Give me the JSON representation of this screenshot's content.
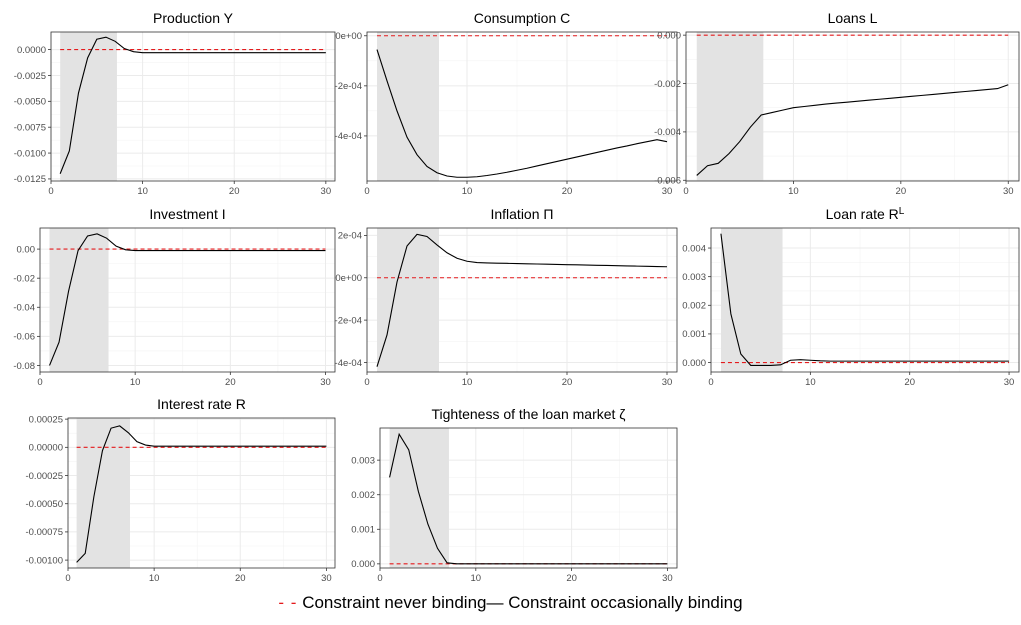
{
  "chart_data": [
    {
      "type": "line",
      "title": "Production Y",
      "x": [
        1,
        2,
        3,
        4,
        5,
        6,
        7,
        8,
        9,
        10,
        11,
        12,
        13,
        14,
        15,
        16,
        17,
        18,
        19,
        20,
        21,
        22,
        23,
        24,
        25,
        26,
        27,
        28,
        29,
        30
      ],
      "series": [
        {
          "name": "Constraint never binding",
          "values": [
            0,
            0,
            0,
            0,
            0,
            0,
            0,
            0,
            0,
            0,
            0,
            0,
            0,
            0,
            0,
            0,
            0,
            0,
            0,
            0,
            0,
            0,
            0,
            0,
            0,
            0,
            0,
            0,
            0,
            0
          ]
        },
        {
          "name": "Constraint occasionally binding",
          "values": [
            -0.012,
            -0.0098,
            -0.0042,
            -0.0008,
            0.001,
            0.0012,
            0.0008,
            0.0001,
            -0.0002,
            -0.0003,
            -0.0003,
            -0.0003,
            -0.0003,
            -0.0003,
            -0.0003,
            -0.0003,
            -0.0003,
            -0.0003,
            -0.0003,
            -0.0003,
            -0.0003,
            -0.0003,
            -0.0003,
            -0.0003,
            -0.0003,
            -0.0003,
            -0.0003,
            -0.0003,
            -0.0003,
            -0.0003
          ]
        }
      ],
      "shade": [
        1,
        7.2
      ],
      "xlim": [
        0,
        31
      ],
      "ylim": [
        -0.0127,
        0.0017
      ],
      "xticks": [
        0,
        10,
        20,
        30
      ],
      "yticks": [
        0.0,
        -0.0025,
        -0.005,
        -0.0075,
        -0.01,
        -0.0125
      ],
      "ytick_labels": [
        "0.0000",
        "-0.0025",
        "-0.0050",
        "-0.0075",
        "-0.0100",
        "-0.0125"
      ]
    },
    {
      "type": "line",
      "title": "Consumption C",
      "x": [
        1,
        2,
        3,
        4,
        5,
        6,
        7,
        8,
        9,
        10,
        11,
        12,
        13,
        14,
        15,
        16,
        17,
        18,
        19,
        20,
        21,
        22,
        23,
        24,
        25,
        26,
        27,
        28,
        29,
        30
      ],
      "series": [
        {
          "name": "Constraint never binding",
          "values": [
            0,
            0,
            0,
            0,
            0,
            0,
            0,
            0,
            0,
            0,
            0,
            0,
            0,
            0,
            0,
            0,
            0,
            0,
            0,
            0,
            0,
            0,
            0,
            0,
            0,
            0,
            0,
            0,
            0,
            0
          ]
        },
        {
          "name": "Constraint occasionally binding",
          "values": [
            -5.5e-05,
            -0.00018,
            -0.0003,
            -0.000405,
            -0.000475,
            -0.000522,
            -0.000547,
            -0.00056,
            -0.000565,
            -0.000565,
            -0.000563,
            -0.000558,
            -0.000552,
            -0.000545,
            -0.000537,
            -0.000529,
            -0.00052,
            -0.000511,
            -0.000502,
            -0.000493,
            -0.000484,
            -0.000475,
            -0.000466,
            -0.000457,
            -0.000448,
            -0.00044,
            -0.000431,
            -0.000423,
            -0.000415,
            -0.000423
          ]
        }
      ],
      "shade": [
        1,
        7.2
      ],
      "xlim": [
        0,
        31
      ],
      "ylim": [
        -0.00058,
        1.5e-05
      ],
      "xticks": [
        0,
        10,
        20,
        30
      ],
      "yticks": [
        0,
        -0.0002,
        -0.0004
      ],
      "ytick_labels": [
        "0e+00",
        "-2e-04",
        "-4e-04"
      ]
    },
    {
      "type": "line",
      "title": "Loans L",
      "x": [
        1,
        2,
        3,
        4,
        5,
        6,
        7,
        8,
        9,
        10,
        11,
        12,
        13,
        14,
        15,
        16,
        17,
        18,
        19,
        20,
        21,
        22,
        23,
        24,
        25,
        26,
        27,
        28,
        29,
        30
      ],
      "series": [
        {
          "name": "Constraint never binding",
          "values": [
            0,
            0,
            0,
            0,
            0,
            0,
            0,
            0,
            0,
            0,
            0,
            0,
            0,
            0,
            0,
            0,
            0,
            0,
            0,
            0,
            0,
            0,
            0,
            0,
            0,
            0,
            0,
            0,
            0,
            0
          ]
        },
        {
          "name": "Constraint occasionally binding",
          "values": [
            -0.0058,
            -0.0054,
            -0.0053,
            -0.0049,
            -0.0044,
            -0.0038,
            -0.0033,
            -0.0032,
            -0.0031,
            -0.003,
            -0.00295,
            -0.0029,
            -0.00285,
            -0.00281,
            -0.00277,
            -0.00273,
            -0.00269,
            -0.00265,
            -0.00261,
            -0.00257,
            -0.00253,
            -0.00249,
            -0.00245,
            -0.00241,
            -0.00237,
            -0.00233,
            -0.00229,
            -0.00225,
            -0.00221,
            -0.00205
          ]
        }
      ],
      "shade": [
        1,
        7.2
      ],
      "xlim": [
        0,
        31
      ],
      "ylim": [
        -0.00603,
        0.00013
      ],
      "xticks": [
        0,
        10,
        20,
        30
      ],
      "yticks": [
        0,
        -0.002,
        -0.004,
        -0.006
      ],
      "ytick_labels": [
        "0.000",
        "-0.002",
        "-0.004",
        "-0.006"
      ]
    },
    {
      "type": "line",
      "title": "Investment I",
      "x": [
        1,
        2,
        3,
        4,
        5,
        6,
        7,
        8,
        9,
        10,
        11,
        12,
        13,
        14,
        15,
        16,
        17,
        18,
        19,
        20,
        21,
        22,
        23,
        24,
        25,
        26,
        27,
        28,
        29,
        30
      ],
      "series": [
        {
          "name": "Constraint never binding",
          "values": [
            0,
            0,
            0,
            0,
            0,
            0,
            0,
            0,
            0,
            0,
            0,
            0,
            0,
            0,
            0,
            0,
            0,
            0,
            0,
            0,
            0,
            0,
            0,
            0,
            0,
            0,
            0,
            0,
            0,
            0
          ]
        },
        {
          "name": "Constraint occasionally binding",
          "values": [
            -0.08,
            -0.064,
            -0.029,
            -0.001,
            0.009,
            0.0105,
            0.0075,
            0.002,
            -0.0005,
            -0.001,
            -0.001,
            -0.001,
            -0.001,
            -0.001,
            -0.001,
            -0.001,
            -0.001,
            -0.001,
            -0.001,
            -0.001,
            -0.001,
            -0.001,
            -0.001,
            -0.001,
            -0.001,
            -0.001,
            -0.001,
            -0.001,
            -0.001,
            -0.001
          ]
        }
      ],
      "shade": [
        1,
        7.2
      ],
      "xlim": [
        0,
        31
      ],
      "ylim": [
        -0.0845,
        0.0145
      ],
      "xticks": [
        0,
        10,
        20,
        30
      ],
      "yticks": [
        0,
        -0.02,
        -0.04,
        -0.06,
        -0.08
      ],
      "ytick_labels": [
        "0.00",
        "-0.02",
        "-0.04",
        "-0.06",
        "-0.08"
      ]
    },
    {
      "type": "line",
      "title": "Inflation Π",
      "x": [
        1,
        2,
        3,
        4,
        5,
        6,
        7,
        8,
        9,
        10,
        11,
        12,
        13,
        14,
        15,
        16,
        17,
        18,
        19,
        20,
        21,
        22,
        23,
        24,
        25,
        26,
        27,
        28,
        29,
        30
      ],
      "series": [
        {
          "name": "Constraint never binding",
          "values": [
            0,
            0,
            0,
            0,
            0,
            0,
            0,
            0,
            0,
            0,
            0,
            0,
            0,
            0,
            0,
            0,
            0,
            0,
            0,
            0,
            0,
            0,
            0,
            0,
            0,
            0,
            0,
            0,
            0,
            0
          ]
        },
        {
          "name": "Constraint occasionally binding",
          "values": [
            -0.00042,
            -0.00027,
            -2e-05,
            0.00015,
            0.000205,
            0.000195,
            0.000155,
            0.000118,
            9.2e-05,
            7.8e-05,
            7.2e-05,
            7e-05,
            6.9e-05,
            6.8e-05,
            6.7e-05,
            6.6e-05,
            6.5e-05,
            6.4e-05,
            6.3e-05,
            6.2e-05,
            6.1e-05,
            6e-05,
            5.9e-05,
            5.8e-05,
            5.7e-05,
            5.6e-05,
            5.5e-05,
            5.4e-05,
            5.3e-05,
            5.2e-05
          ]
        }
      ],
      "shade": [
        1,
        7.2
      ],
      "xlim": [
        0,
        31
      ],
      "ylim": [
        -0.000445,
        0.000235
      ],
      "xticks": [
        0,
        10,
        20,
        30
      ],
      "yticks": [
        0.0002,
        0,
        -0.0002,
        -0.0004
      ],
      "ytick_labels": [
        "2e-04",
        "0e+00",
        "-2e-04",
        "-4e-04"
      ]
    },
    {
      "type": "line",
      "title": "Loan rate R",
      "title_sup": "L",
      "x": [
        1,
        2,
        3,
        4,
        5,
        6,
        7,
        8,
        9,
        10,
        11,
        12,
        13,
        14,
        15,
        16,
        17,
        18,
        19,
        20,
        21,
        22,
        23,
        24,
        25,
        26,
        27,
        28,
        29,
        30
      ],
      "series": [
        {
          "name": "Constraint never binding",
          "values": [
            0,
            0,
            0,
            0,
            0,
            0,
            0,
            0,
            0,
            0,
            0,
            0,
            0,
            0,
            0,
            0,
            0,
            0,
            0,
            0,
            0,
            0,
            0,
            0,
            0,
            0,
            0,
            0,
            0,
            0
          ]
        },
        {
          "name": "Constraint occasionally binding",
          "values": [
            0.0045,
            0.0017,
            0.0003,
            -0.0001,
            -0.0001,
            -0.0001,
            -8e-05,
            8e-05,
            0.0001,
            8e-05,
            6e-05,
            5e-05,
            5e-05,
            5e-05,
            5e-05,
            5e-05,
            5e-05,
            5e-05,
            5e-05,
            5e-05,
            5e-05,
            5e-05,
            5e-05,
            5e-05,
            5e-05,
            5e-05,
            5e-05,
            5e-05,
            5e-05,
            5e-05
          ]
        }
      ],
      "shade": [
        1,
        7.2
      ],
      "xlim": [
        0,
        31
      ],
      "ylim": [
        -0.00033,
        0.0047
      ],
      "xticks": [
        0,
        10,
        20,
        30
      ],
      "yticks": [
        0.004,
        0.003,
        0.002,
        0.001,
        0.0
      ],
      "ytick_labels": [
        "0.004",
        "0.003",
        "0.002",
        "0.001",
        "0.000"
      ]
    },
    {
      "type": "line",
      "title": "Interest rate R",
      "x": [
        1,
        2,
        3,
        4,
        5,
        6,
        7,
        8,
        9,
        10,
        11,
        12,
        13,
        14,
        15,
        16,
        17,
        18,
        19,
        20,
        21,
        22,
        23,
        24,
        25,
        26,
        27,
        28,
        29,
        30
      ],
      "series": [
        {
          "name": "Constraint never binding",
          "values": [
            0,
            0,
            0,
            0,
            0,
            0,
            0,
            0,
            0,
            0,
            0,
            0,
            0,
            0,
            0,
            0,
            0,
            0,
            0,
            0,
            0,
            0,
            0,
            0,
            0,
            0,
            0,
            0,
            0,
            0
          ]
        },
        {
          "name": "Constraint occasionally binding",
          "values": [
            -0.00102,
            -0.00094,
            -0.00044,
            -3e-05,
            0.00017,
            0.00019,
            0.00013,
            5e-05,
            2e-05,
            1e-05,
            1e-05,
            1e-05,
            1e-05,
            1e-05,
            1e-05,
            1e-05,
            1e-05,
            1e-05,
            1e-05,
            1e-05,
            1e-05,
            1e-05,
            1e-05,
            1e-05,
            1e-05,
            1e-05,
            1e-05,
            1e-05,
            1e-05,
            1e-05
          ]
        }
      ],
      "shade": [
        1,
        7.2
      ],
      "xlim": [
        0,
        31
      ],
      "ylim": [
        -0.00107,
        0.00026
      ],
      "xticks": [
        0,
        10,
        20,
        30
      ],
      "yticks": [
        0.00025,
        0,
        -0.00025,
        -0.0005,
        -0.00075,
        -0.001
      ],
      "ytick_labels": [
        "0.00025",
        "0.00000",
        "-0.00025",
        "-0.00050",
        "-0.00075",
        "-0.00100"
      ]
    },
    {
      "type": "line",
      "title": "Tighteness of the loan market ζ",
      "x": [
        1,
        2,
        3,
        4,
        5,
        6,
        7,
        8,
        9,
        10,
        11,
        12,
        13,
        14,
        15,
        16,
        17,
        18,
        19,
        20,
        21,
        22,
        23,
        24,
        25,
        26,
        27,
        28,
        29,
        30
      ],
      "series": [
        {
          "name": "Constraint never binding",
          "values": [
            0,
            0,
            0,
            0,
            0,
            0,
            0,
            0,
            0,
            0,
            0,
            0,
            0,
            0,
            0,
            0,
            0,
            0,
            0,
            0,
            0,
            0,
            0,
            0,
            0,
            0,
            0,
            0,
            0,
            0
          ]
        },
        {
          "name": "Constraint occasionally binding",
          "values": [
            0.0025,
            0.00375,
            0.0033,
            0.0021,
            0.00115,
            0.00045,
            3e-05,
            0,
            0,
            0,
            0,
            0,
            0,
            0,
            0,
            0,
            0,
            0,
            0,
            0,
            0,
            0,
            0,
            0,
            0,
            0,
            0,
            0,
            0,
            0
          ]
        }
      ],
      "shade": [
        1,
        7.2
      ],
      "xlim": [
        0,
        31
      ],
      "ylim": [
        -0.00012,
        0.00393
      ],
      "xticks": [
        0,
        10,
        20,
        30
      ],
      "yticks": [
        0.003,
        0.002,
        0.001,
        0.0
      ],
      "ytick_labels": [
        "0.003",
        "0.002",
        "0.001",
        "0.000"
      ]
    }
  ],
  "legend": {
    "never_binding_label": "Constraint never binding",
    "occasionally_binding_label": "Constraint occasionally binding",
    "never_binding_color": "#e41a1c",
    "occasionally_binding_color": "#000000"
  },
  "colors": {
    "shade": "#e3e3e3",
    "grid": "#ebebeb",
    "border": "#333333"
  }
}
